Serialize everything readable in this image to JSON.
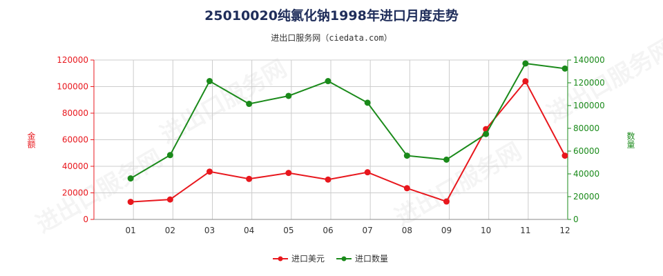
{
  "header": {
    "title": "25010020纯氯化钠1998年进口月度走势",
    "subtitle": "进出口服务网（ciedata.com）"
  },
  "watermark": "进出口服务网",
  "colors": {
    "left_series": "#e8171d",
    "right_series": "#1a8a1a",
    "grid": "#cccccc"
  },
  "chart_data": {
    "type": "line",
    "categories": [
      "01",
      "02",
      "03",
      "04",
      "05",
      "06",
      "07",
      "08",
      "09",
      "10",
      "11",
      "12"
    ],
    "series": [
      {
        "name": "进口美元",
        "axis": "left",
        "color": "#e8171d",
        "values": [
          13200,
          15000,
          36000,
          30500,
          35000,
          30000,
          35500,
          23500,
          13500,
          68000,
          104000,
          48000
        ]
      },
      {
        "name": "进口数量",
        "axis": "right",
        "color": "#1a8a1a",
        "values": [
          36000,
          56500,
          121500,
          101500,
          108500,
          121500,
          102500,
          56000,
          52500,
          75000,
          137000,
          132500
        ]
      }
    ],
    "y_left": {
      "label": "金额",
      "ylim": [
        0,
        120000
      ],
      "ticks": [
        0,
        20000,
        40000,
        60000,
        80000,
        100000,
        120000
      ]
    },
    "y_right": {
      "label": "数量",
      "ylim": [
        0,
        140000
      ],
      "ticks": [
        0,
        20000,
        40000,
        60000,
        80000,
        100000,
        120000,
        140000
      ]
    },
    "grid": true,
    "legend": "bottom-center"
  }
}
